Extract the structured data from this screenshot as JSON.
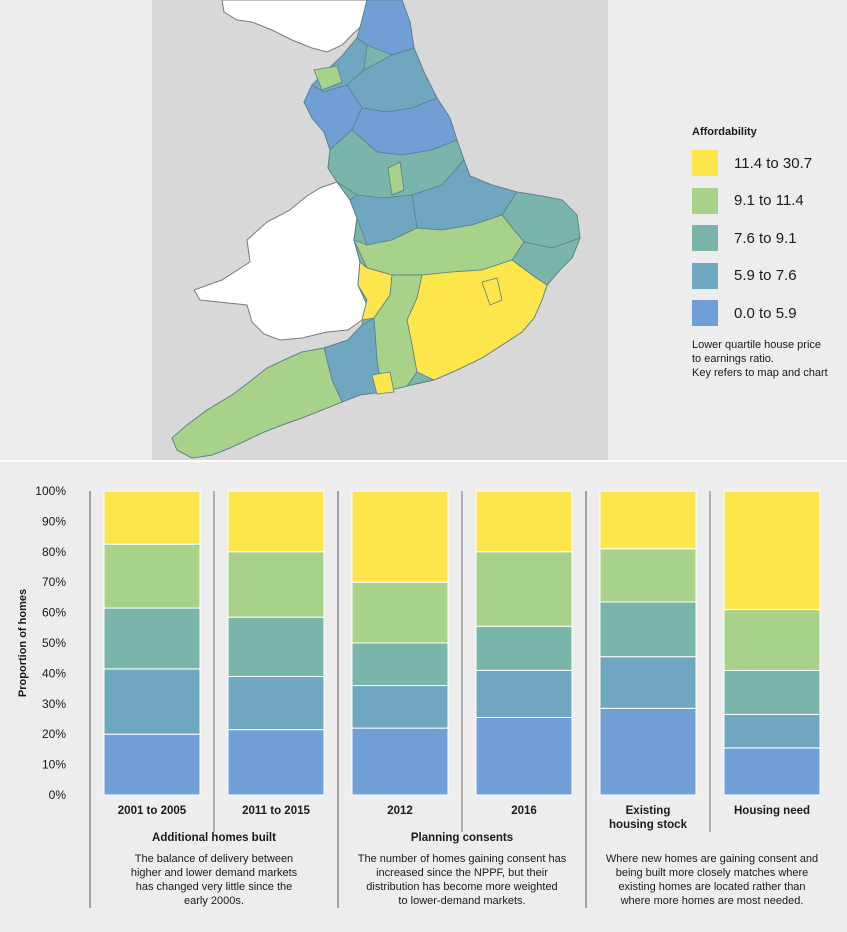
{
  "legend": {
    "title": "Affordability",
    "items": [
      {
        "label": "11.4 to 30.7",
        "color": "#fde64b"
      },
      {
        "label": "9.1 to 11.4",
        "color": "#a8d18a"
      },
      {
        "label": "7.6 to 9.1",
        "color": "#79b5ab"
      },
      {
        "label": "5.9 to 7.6",
        "color": "#6fa7c0"
      },
      {
        "label": "0.0 to 5.9",
        "color": "#6f9fd4"
      }
    ],
    "note_lines": [
      "Lower quartile house price",
      "to earnings ratio.",
      "Key refers to map and chart"
    ]
  },
  "map": {
    "regions": [
      "England",
      "Wales",
      "Scotland"
    ],
    "colors": {
      "land": "#ffffff",
      "outline": "#7b7b7b",
      "background": "#d8d8d9"
    }
  },
  "chart_data": {
    "type": "bar",
    "stacked": true,
    "categories": [
      "2001 to 2005",
      "2011 to 2015",
      "2012",
      "2016",
      "Existing housing stock",
      "Housing need"
    ],
    "category_labels": [
      [
        "2001 to 2005"
      ],
      [
        "2011 to 2015"
      ],
      [
        "2012"
      ],
      [
        "2016"
      ],
      [
        "Existing",
        "housing stock"
      ],
      [
        "Housing need"
      ]
    ],
    "series": [
      {
        "name": "0.0 to 5.9",
        "color": "#6f9fd4",
        "values": [
          20,
          21.5,
          22,
          25.5,
          28.5,
          15.5
        ]
      },
      {
        "name": "5.9 to 7.6",
        "color": "#6fa7c0",
        "values": [
          21.5,
          17.5,
          14,
          15.5,
          17,
          11
        ]
      },
      {
        "name": "7.6 to 9.1",
        "color": "#79b5ab",
        "values": [
          20,
          19.5,
          14,
          14.5,
          18,
          14.5
        ]
      },
      {
        "name": "9.1 to 11.4",
        "color": "#a8d18a",
        "values": [
          21,
          21.5,
          20,
          24.5,
          17.5,
          20
        ]
      },
      {
        "name": "11.4 to 30.7",
        "color": "#fde64b",
        "values": [
          17.5,
          20,
          30,
          20,
          19,
          39
        ]
      }
    ],
    "ylabel": "Proportion of homes",
    "ylim": [
      0,
      100
    ],
    "yticks": [
      "0%",
      "10%",
      "20%",
      "30%",
      "40%",
      "50%",
      "60%",
      "70%",
      "80%",
      "90%",
      "100%"
    ],
    "groups": [
      {
        "title": "Additional homes built",
        "description": [
          "The balance of delivery between",
          "higher and lower demand markets",
          "has changed very little since the",
          "early 2000s."
        ]
      },
      {
        "title": "Planning consents",
        "description": [
          "The number of homes gaining consent has",
          "increased since the NPPF, but their",
          "distribution has become more weighted",
          "to lower-demand markets."
        ]
      },
      {
        "title": "",
        "description": [
          "Where new homes are gaining consent and",
          "being built more closely matches where",
          "existing homes are located rather than",
          "where more homes are most needed."
        ]
      }
    ]
  }
}
